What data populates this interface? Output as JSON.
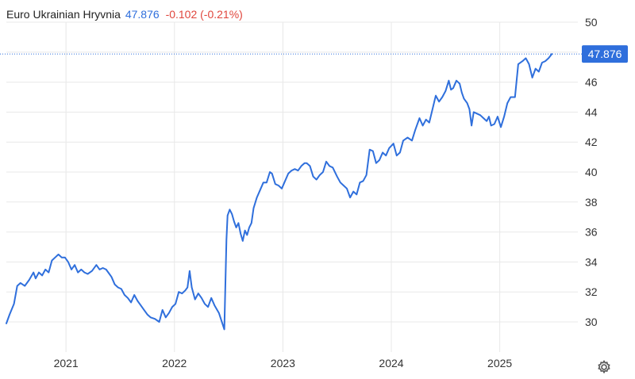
{
  "header": {
    "name": "Euro Ukrainian Hryvnia",
    "price": "47.876",
    "change": "-0.102 (-0.21%)"
  },
  "icons": {
    "settings": "gear-icon"
  },
  "colors": {
    "line": "#2f6fdc",
    "negative": "#e0463d",
    "grid": "#e8e8e8"
  },
  "chart_data": {
    "type": "line",
    "title": "Euro Ukrainian Hryvnia",
    "xlabel": "",
    "ylabel": "",
    "x_ticks": [
      "2021",
      "2022",
      "2023",
      "2024",
      "2025"
    ],
    "y_ticks": [
      30,
      32,
      34,
      36,
      38,
      40,
      42,
      44,
      46,
      48,
      50
    ],
    "y_tick_labels": [
      "30",
      "32",
      "34",
      "36",
      "38",
      "40",
      "42",
      "44",
      "46",
      "",
      "50"
    ],
    "ylim": [
      28.0,
      51.0
    ],
    "xlim": [
      2020.45,
      2025.72
    ],
    "grid": true,
    "last_value": 47.876,
    "last_value_label": "47.876",
    "series": [
      {
        "values": [
          [
            2020.45,
            29.9
          ],
          [
            2020.48,
            30.5
          ],
          [
            2020.52,
            31.2
          ],
          [
            2020.55,
            32.4
          ],
          [
            2020.58,
            32.6
          ],
          [
            2020.62,
            32.4
          ],
          [
            2020.66,
            32.8
          ],
          [
            2020.7,
            33.3
          ],
          [
            2020.72,
            32.9
          ],
          [
            2020.75,
            33.3
          ],
          [
            2020.78,
            33.1
          ],
          [
            2020.81,
            33.5
          ],
          [
            2020.84,
            33.3
          ],
          [
            2020.87,
            34.1
          ],
          [
            2020.9,
            34.3
          ],
          [
            2020.93,
            34.5
          ],
          [
            2020.96,
            34.3
          ],
          [
            2020.99,
            34.3
          ],
          [
            2021.02,
            34.0
          ],
          [
            2021.05,
            33.5
          ],
          [
            2021.08,
            33.8
          ],
          [
            2021.11,
            33.3
          ],
          [
            2021.14,
            33.5
          ],
          [
            2021.17,
            33.3
          ],
          [
            2021.2,
            33.2
          ],
          [
            2021.24,
            33.4
          ],
          [
            2021.28,
            33.8
          ],
          [
            2021.31,
            33.5
          ],
          [
            2021.34,
            33.6
          ],
          [
            2021.37,
            33.5
          ],
          [
            2021.4,
            33.2
          ],
          [
            2021.42,
            33.0
          ],
          [
            2021.45,
            32.5
          ],
          [
            2021.48,
            32.3
          ],
          [
            2021.51,
            32.2
          ],
          [
            2021.54,
            31.8
          ],
          [
            2021.57,
            31.6
          ],
          [
            2021.6,
            31.3
          ],
          [
            2021.63,
            31.8
          ],
          [
            2021.66,
            31.4
          ],
          [
            2021.69,
            31.1
          ],
          [
            2021.72,
            30.8
          ],
          [
            2021.75,
            30.5
          ],
          [
            2021.78,
            30.3
          ],
          [
            2021.82,
            30.2
          ],
          [
            2021.86,
            30.0
          ],
          [
            2021.89,
            30.8
          ],
          [
            2021.92,
            30.3
          ],
          [
            2021.95,
            30.6
          ],
          [
            2021.98,
            31.0
          ],
          [
            2022.01,
            31.2
          ],
          [
            2022.04,
            32.0
          ],
          [
            2022.07,
            31.9
          ],
          [
            2022.1,
            32.1
          ],
          [
            2022.12,
            32.3
          ],
          [
            2022.14,
            33.4
          ],
          [
            2022.16,
            32.3
          ],
          [
            2022.19,
            31.5
          ],
          [
            2022.22,
            31.9
          ],
          [
            2022.25,
            31.6
          ],
          [
            2022.28,
            31.2
          ],
          [
            2022.31,
            31.0
          ],
          [
            2022.34,
            31.6
          ],
          [
            2022.37,
            31.1
          ],
          [
            2022.41,
            30.6
          ],
          [
            2022.46,
            29.5
          ],
          [
            2022.48,
            35.5
          ],
          [
            2022.49,
            37.1
          ],
          [
            2022.51,
            37.5
          ],
          [
            2022.53,
            37.2
          ],
          [
            2022.55,
            36.7
          ],
          [
            2022.57,
            36.3
          ],
          [
            2022.59,
            36.6
          ],
          [
            2022.61,
            35.9
          ],
          [
            2022.63,
            35.4
          ],
          [
            2022.65,
            36.1
          ],
          [
            2022.67,
            35.8
          ],
          [
            2022.69,
            36.3
          ],
          [
            2022.71,
            36.6
          ],
          [
            2022.73,
            37.6
          ],
          [
            2022.76,
            38.3
          ],
          [
            2022.79,
            38.8
          ],
          [
            2022.82,
            39.3
          ],
          [
            2022.85,
            39.3
          ],
          [
            2022.88,
            40.0
          ],
          [
            2022.9,
            39.9
          ],
          [
            2022.93,
            39.2
          ],
          [
            2022.96,
            39.1
          ],
          [
            2022.99,
            38.9
          ],
          [
            2023.02,
            39.4
          ],
          [
            2023.05,
            39.9
          ],
          [
            2023.08,
            40.1
          ],
          [
            2023.11,
            40.2
          ],
          [
            2023.14,
            40.1
          ],
          [
            2023.17,
            40.4
          ],
          [
            2023.2,
            40.6
          ],
          [
            2023.22,
            40.6
          ],
          [
            2023.25,
            40.4
          ],
          [
            2023.28,
            39.7
          ],
          [
            2023.31,
            39.5
          ],
          [
            2023.34,
            39.8
          ],
          [
            2023.37,
            40.0
          ],
          [
            2023.4,
            40.7
          ],
          [
            2023.43,
            40.4
          ],
          [
            2023.46,
            40.3
          ],
          [
            2023.5,
            39.7
          ],
          [
            2023.53,
            39.3
          ],
          [
            2023.56,
            39.1
          ],
          [
            2023.59,
            38.9
          ],
          [
            2023.62,
            38.3
          ],
          [
            2023.65,
            38.7
          ],
          [
            2023.68,
            38.5
          ],
          [
            2023.71,
            39.3
          ],
          [
            2023.74,
            39.4
          ],
          [
            2023.77,
            39.8
          ],
          [
            2023.8,
            41.5
          ],
          [
            2023.83,
            41.4
          ],
          [
            2023.86,
            40.6
          ],
          [
            2023.89,
            40.8
          ],
          [
            2023.92,
            41.3
          ],
          [
            2023.95,
            41.1
          ],
          [
            2023.98,
            41.6
          ],
          [
            2024.02,
            41.9
          ],
          [
            2024.05,
            41.1
          ],
          [
            2024.08,
            41.3
          ],
          [
            2024.11,
            42.1
          ],
          [
            2024.15,
            42.3
          ],
          [
            2024.19,
            42.1
          ],
          [
            2024.22,
            42.8
          ],
          [
            2024.26,
            43.6
          ],
          [
            2024.29,
            43.1
          ],
          [
            2024.32,
            43.5
          ],
          [
            2024.35,
            43.3
          ],
          [
            2024.38,
            44.2
          ],
          [
            2024.41,
            45.1
          ],
          [
            2024.44,
            44.7
          ],
          [
            2024.47,
            45.0
          ],
          [
            2024.5,
            45.4
          ],
          [
            2024.53,
            46.1
          ],
          [
            2024.55,
            45.5
          ],
          [
            2024.57,
            45.6
          ],
          [
            2024.6,
            46.1
          ],
          [
            2024.63,
            45.9
          ],
          [
            2024.65,
            45.3
          ],
          [
            2024.67,
            44.9
          ],
          [
            2024.7,
            44.6
          ],
          [
            2024.72,
            44.2
          ],
          [
            2024.74,
            43.1
          ],
          [
            2024.76,
            44.0
          ],
          [
            2024.79,
            43.9
          ],
          [
            2024.82,
            43.8
          ],
          [
            2024.85,
            43.6
          ],
          [
            2024.88,
            43.4
          ],
          [
            2024.9,
            43.7
          ],
          [
            2024.92,
            43.1
          ],
          [
            2024.95,
            43.2
          ],
          [
            2024.98,
            43.7
          ],
          [
            2025.01,
            43.0
          ],
          [
            2025.04,
            43.7
          ],
          [
            2025.07,
            44.6
          ],
          [
            2025.1,
            45.0
          ],
          [
            2025.14,
            45.0
          ],
          [
            2025.17,
            47.2
          ],
          [
            2025.21,
            47.4
          ],
          [
            2025.24,
            47.6
          ],
          [
            2025.27,
            47.2
          ],
          [
            2025.3,
            46.3
          ],
          [
            2025.33,
            46.9
          ],
          [
            2025.36,
            46.7
          ],
          [
            2025.39,
            47.3
          ],
          [
            2025.42,
            47.4
          ],
          [
            2025.45,
            47.6
          ],
          [
            2025.48,
            47.876
          ]
        ]
      }
    ]
  }
}
